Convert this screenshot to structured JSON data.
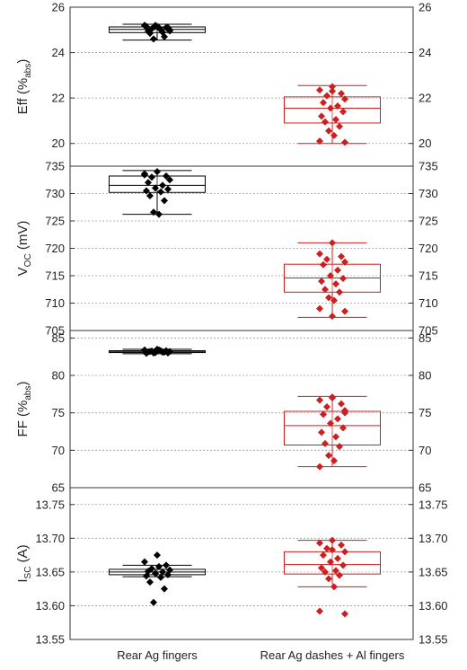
{
  "chart_data": {
    "type": "box",
    "categories": [
      "Rear Ag fingers",
      "Rear Ag dashes + Al fingers"
    ],
    "series_colors": [
      "#000000",
      "#cc1f1f"
    ],
    "grid": true,
    "panels": [
      {
        "ylabel_main": "Eff (%",
        "ylabel_sub": "abs",
        "ylabel_tail": ")",
        "ylim": [
          19,
          26
        ],
        "ticks": [
          20,
          22,
          24,
          26
        ],
        "tick_labels": [
          "20",
          "22",
          "24",
          "26"
        ],
        "groups": [
          {
            "box": {
              "min": 24.55,
              "q1": 24.88,
              "median": 25.02,
              "q3": 25.13,
              "max": 25.25
            },
            "points": [
              25.15,
              25.2,
              25.1,
              25.05,
              25.0,
              24.95,
              24.9,
              25.2,
              25.1,
              25.15,
              25.0,
              24.85,
              24.7,
              24.6,
              25.1,
              25.2,
              24.95
            ]
          },
          {
            "box": {
              "min": 20.0,
              "q1": 20.9,
              "median": 21.55,
              "q3": 22.05,
              "max": 22.55
            },
            "points": [
              22.5,
              22.35,
              22.2,
              22.1,
              21.95,
              21.8,
              21.65,
              21.55,
              21.4,
              21.2,
              21.05,
              20.95,
              20.75,
              20.55,
              20.35,
              20.1,
              20.05,
              22.3
            ]
          }
        ]
      },
      {
        "ylabel_main": "V",
        "ylabel_sub": "OC",
        "ylabel_tail": " (mV)",
        "ylim": [
          705,
          735
        ],
        "ticks": [
          705,
          710,
          715,
          720,
          725,
          730,
          735
        ],
        "tick_labels": [
          "705",
          "710",
          "715",
          "720",
          "725",
          "730",
          "735"
        ],
        "groups": [
          {
            "box": {
              "min": 726.2,
              "q1": 730.2,
              "median": 731.5,
              "q3": 733.2,
              "max": 734.2
            },
            "points": [
              734.0,
              733.6,
              733.2,
              733.0,
              732.5,
              732.0,
              731.5,
              731.0,
              730.8,
              730.5,
              730.3,
              729.6,
              728.7,
              726.6,
              726.2,
              733.4
            ]
          },
          {
            "box": {
              "min": 707.4,
              "q1": 712.0,
              "median": 714.6,
              "q3": 717.1,
              "max": 721.0
            },
            "points": [
              721.0,
              719.0,
              718.5,
              718.0,
              717.5,
              717.0,
              716.0,
              715.0,
              714.5,
              714.0,
              713.5,
              712.5,
              712.0,
              711.0,
              710.5,
              709.0,
              708.5,
              707.6
            ]
          }
        ]
      },
      {
        "ylabel_main": "FF (%",
        "ylabel_sub": "abs",
        "ylabel_tail": ")",
        "ylim": [
          65,
          86
        ],
        "ticks": [
          65,
          70,
          75,
          80,
          85
        ],
        "tick_labels": [
          "65",
          "70",
          "75",
          "80",
          "85"
        ],
        "groups": [
          {
            "box": {
              "min": 82.9,
              "q1": 83.05,
              "median": 83.15,
              "q3": 83.3,
              "max": 83.5
            },
            "points": [
              83.5,
              83.4,
              83.3,
              83.25,
              83.2,
              83.15,
              83.1,
              83.05,
              83.0,
              82.95,
              83.3,
              83.2,
              83.1,
              83.0,
              83.4
            ]
          },
          {
            "box": {
              "min": 67.8,
              "q1": 70.7,
              "median": 73.3,
              "q3": 75.2,
              "max": 77.2
            },
            "points": [
              77.0,
              76.7,
              76.2,
              75.8,
              75.3,
              74.8,
              74.2,
              73.6,
              73.0,
              72.4,
              71.8,
              70.9,
              70.5,
              69.3,
              68.6,
              67.8,
              75.0,
              77.1
            ]
          }
        ]
      },
      {
        "ylabel_main": "I",
        "ylabel_sub": "SC",
        "ylabel_tail": " (A)",
        "ylim": [
          13.55,
          13.775
        ],
        "ticks": [
          13.55,
          13.6,
          13.65,
          13.7,
          13.75
        ],
        "tick_labels": [
          "13.55",
          "13.60",
          "13.65",
          "13.70",
          "13.75"
        ],
        "groups": [
          {
            "box": {
              "min": 13.643,
              "q1": 13.646,
              "median": 13.65,
              "q3": 13.654,
              "max": 13.66
            },
            "points": [
              13.675,
              13.665,
              13.66,
              13.655,
              13.653,
              13.651,
              13.65,
              13.648,
              13.646,
              13.644,
              13.642,
              13.635,
              13.625,
              13.605,
              13.658
            ]
          },
          {
            "box": {
              "min": 13.628,
              "q1": 13.647,
              "median": 13.661,
              "q3": 13.68,
              "max": 13.697
            },
            "points": [
              13.697,
              13.693,
              13.69,
              13.685,
              13.68,
              13.675,
              13.67,
              13.665,
              13.66,
              13.656,
              13.652,
              13.65,
              13.645,
              13.64,
              13.628,
              13.592,
              13.588,
              13.683
            ]
          }
        ]
      }
    ]
  }
}
